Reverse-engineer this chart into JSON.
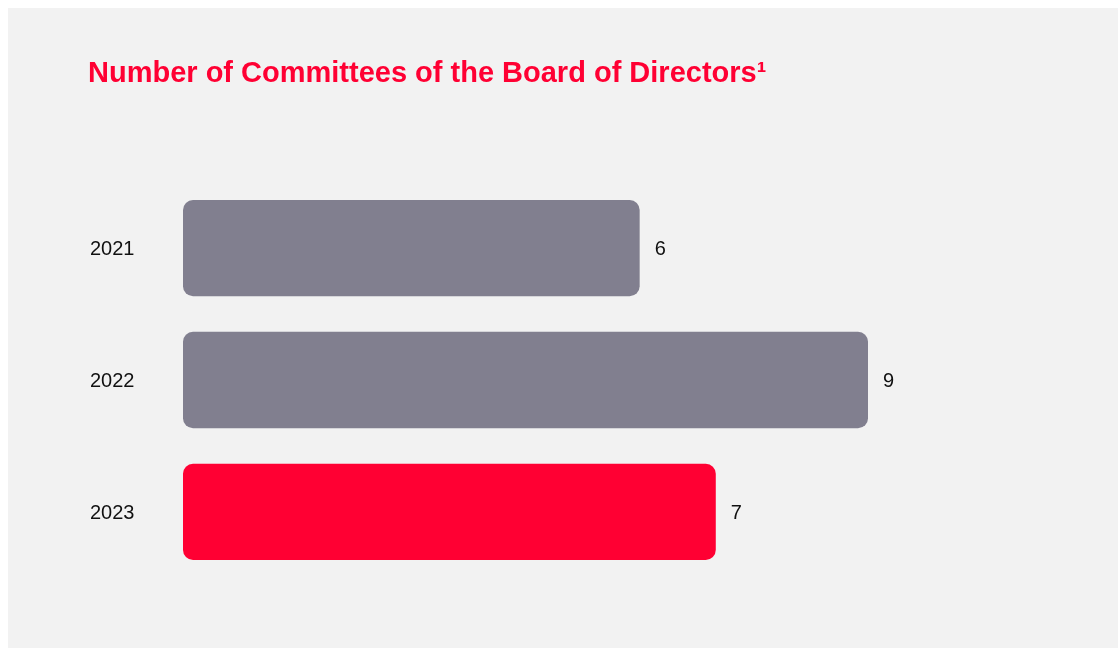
{
  "chart_data": {
    "type": "bar",
    "orientation": "horizontal",
    "title": "Number of Committees of the Board of Directors¹",
    "categories": [
      "2021",
      "2022",
      "2023"
    ],
    "values": [
      6,
      9,
      7
    ],
    "colors": [
      "#817f8f",
      "#817f8f",
      "#ff0033"
    ],
    "data_labels": true
  }
}
